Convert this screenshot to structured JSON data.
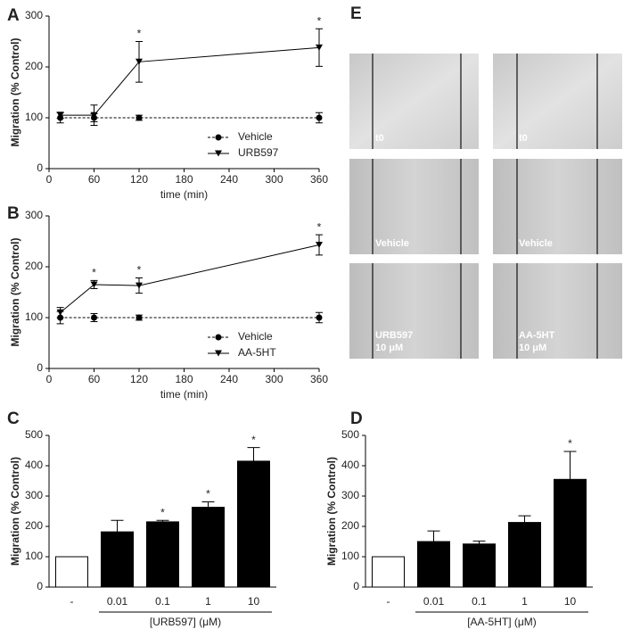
{
  "chart_data": [
    {
      "type": "line",
      "panel": "A",
      "ylabel": "Migration (% Control)",
      "xlabel": "time (min)",
      "x": [
        15,
        60,
        120,
        360
      ],
      "xlim": [
        0,
        360
      ],
      "xticks": [
        0,
        60,
        120,
        180,
        240,
        300,
        360
      ],
      "ylim": [
        0,
        300
      ],
      "yticks": [
        0,
        100,
        200,
        300
      ],
      "legend": "lower right",
      "series": [
        {
          "name": "Vehicle",
          "color": "#000000",
          "linestyle": "dashed",
          "marker": "circle",
          "values": [
            100,
            100,
            100,
            100
          ],
          "errors": [
            10,
            8,
            5,
            10
          ],
          "significance": [
            null,
            null,
            null,
            null
          ]
        },
        {
          "name": "URB597",
          "color": "#000000",
          "linestyle": "solid",
          "marker": "triangle-down",
          "values": [
            105,
            105,
            210,
            238
          ],
          "errors": [
            6,
            20,
            40,
            37
          ],
          "significance": [
            null,
            null,
            "*",
            "*"
          ]
        }
      ]
    },
    {
      "type": "line",
      "panel": "B",
      "ylabel": "Migration (% Control)",
      "xlabel": "time (min)",
      "x": [
        15,
        60,
        120,
        360
      ],
      "xlim": [
        0,
        360
      ],
      "xticks": [
        0,
        60,
        120,
        180,
        240,
        300,
        360
      ],
      "ylim": [
        0,
        300
      ],
      "yticks": [
        0,
        100,
        200,
        300
      ],
      "legend": "lower right",
      "series": [
        {
          "name": "Vehicle",
          "color": "#000000",
          "linestyle": "dashed",
          "marker": "circle",
          "values": [
            100,
            100,
            100,
            100
          ],
          "errors": [
            12,
            8,
            5,
            10
          ],
          "significance": [
            null,
            null,
            null,
            null
          ]
        },
        {
          "name": "AA-5HT",
          "color": "#000000",
          "linestyle": "solid",
          "marker": "triangle-down",
          "values": [
            110,
            165,
            163,
            243
          ],
          "errors": [
            10,
            8,
            15,
            20
          ],
          "significance": [
            null,
            "*",
            "*",
            "*"
          ]
        }
      ]
    },
    {
      "type": "bar",
      "panel": "C",
      "ylabel": "Migration (% Control)",
      "xlabel": "[URB597] (μM)",
      "categories": [
        "-",
        "0.01",
        "0.1",
        "1",
        "10"
      ],
      "values": [
        100,
        182,
        215,
        263,
        415
      ],
      "errors": [
        0,
        38,
        5,
        18,
        45
      ],
      "significance": [
        null,
        null,
        "*",
        "*",
        "*"
      ],
      "colors": [
        "#ffffff",
        "#000000",
        "#000000",
        "#000000",
        "#000000"
      ],
      "ylim": [
        0,
        500
      ],
      "yticks": [
        0,
        100,
        200,
        300,
        400,
        500
      ]
    },
    {
      "type": "bar",
      "panel": "D",
      "ylabel": "Migration (% Control)",
      "xlabel": "[AA-5HT] (μM)",
      "categories": [
        "-",
        "0.01",
        "0.1",
        "1",
        "10"
      ],
      "values": [
        100,
        150,
        142,
        213,
        355
      ],
      "errors": [
        0,
        35,
        10,
        22,
        92
      ],
      "significance": [
        null,
        null,
        null,
        null,
        "*"
      ],
      "colors": [
        "#ffffff",
        "#000000",
        "#000000",
        "#000000",
        "#000000"
      ],
      "ylim": [
        0,
        500
      ],
      "yticks": [
        0,
        100,
        200,
        300,
        400,
        500
      ]
    }
  ],
  "panel_e": {
    "panel": "E",
    "images": [
      [
        [
          "t0"
        ],
        [
          "t0"
        ]
      ],
      [
        [
          "Vehicle"
        ],
        [
          "Vehicle"
        ]
      ],
      [
        [
          "URB597",
          "10 μM"
        ],
        [
          "AA-5HT",
          "10 μM"
        ]
      ]
    ]
  }
}
